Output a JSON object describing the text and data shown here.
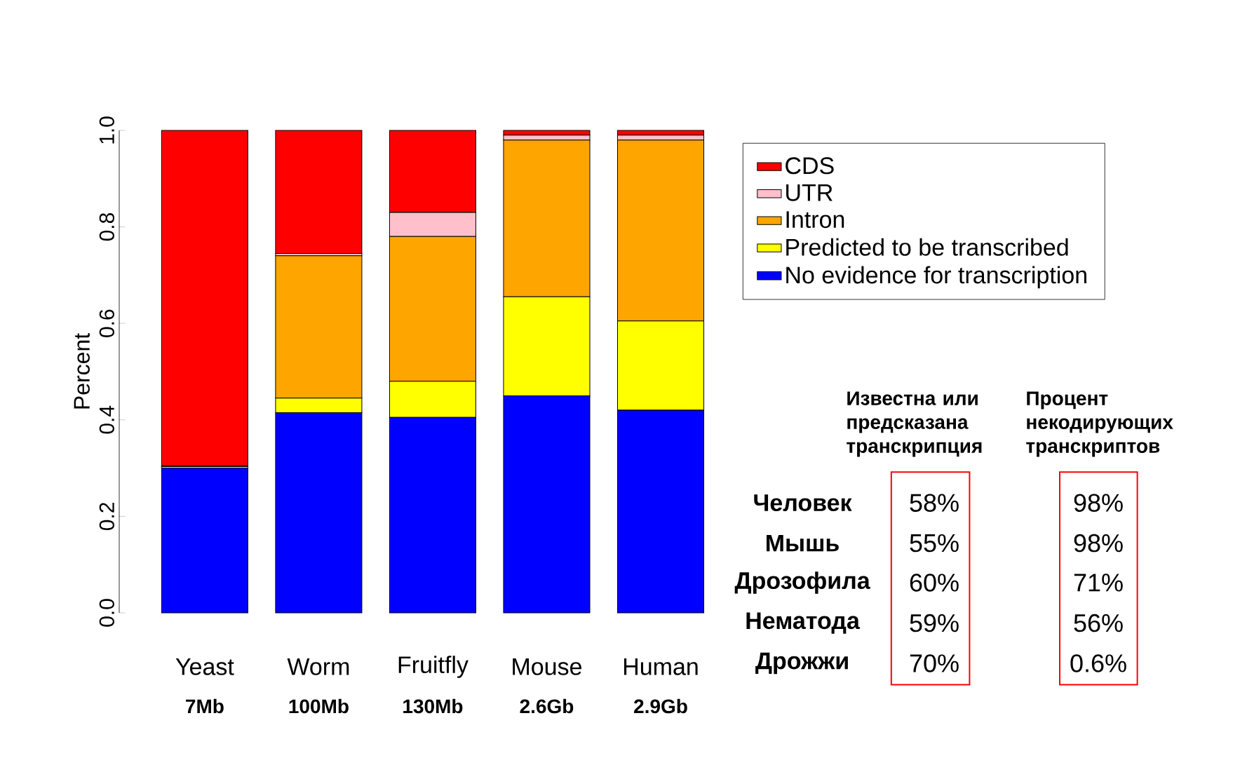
{
  "chart_data": [
    {
      "type": "bar",
      "stacked": true,
      "ylabel": "Percent",
      "categories": [
        "Yeast",
        "Worm",
        "Fruitfly",
        "Mouse",
        "Human"
      ],
      "series": [
        {
          "name": "No evidence for transcription",
          "color": "#0000ff",
          "values": [
            0.3,
            0.415,
            0.405,
            0.45,
            0.42
          ]
        },
        {
          "name": "Predicted to be transcribed",
          "color": "#ffff00",
          "values": [
            0.003,
            0.03,
            0.075,
            0.205,
            0.185
          ]
        },
        {
          "name": "Intron",
          "color": "#ffa500",
          "values": [
            0.002,
            0.295,
            0.3,
            0.325,
            0.375
          ]
        },
        {
          "name": "UTR",
          "color": "#ffc0cb",
          "values": [
            0,
            0.005,
            0.05,
            0.01,
            0.01
          ]
        },
        {
          "name": "CDS",
          "color": "#ff0000",
          "values": [
            0.695,
            0.255,
            0.17,
            0.01,
            0.01
          ]
        }
      ],
      "ylim": [
        0,
        1
      ],
      "yticks": [
        {
          "value": 0,
          "label": "0.0"
        },
        0.2,
        0.4,
        0.6,
        0.8,
        {
          "value": 1,
          "label": "1.0"
        }
      ],
      "legend": "right",
      "annotations": [
        "7Mb",
        "100Mb",
        "130Mb",
        "2.6Gb",
        "2.9Gb"
      ]
    },
    {
      "type": "other",
      "categories": [
        "Известна или предсказана транскрипция",
        "Процент некодирующих транскриптов"
      ],
      "y_categories": [
        "Человек",
        "Мышь",
        "Дрозофила",
        "Нематода",
        "Дрожжи"
      ],
      "cell_labels": [
        [
          "58%",
          "98%"
        ],
        [
          "55%",
          "98%"
        ],
        [
          "60%",
          "71%"
        ],
        [
          "59%",
          "56%"
        ],
        [
          "70%",
          "0.6%"
        ]
      ]
    }
  ]
}
